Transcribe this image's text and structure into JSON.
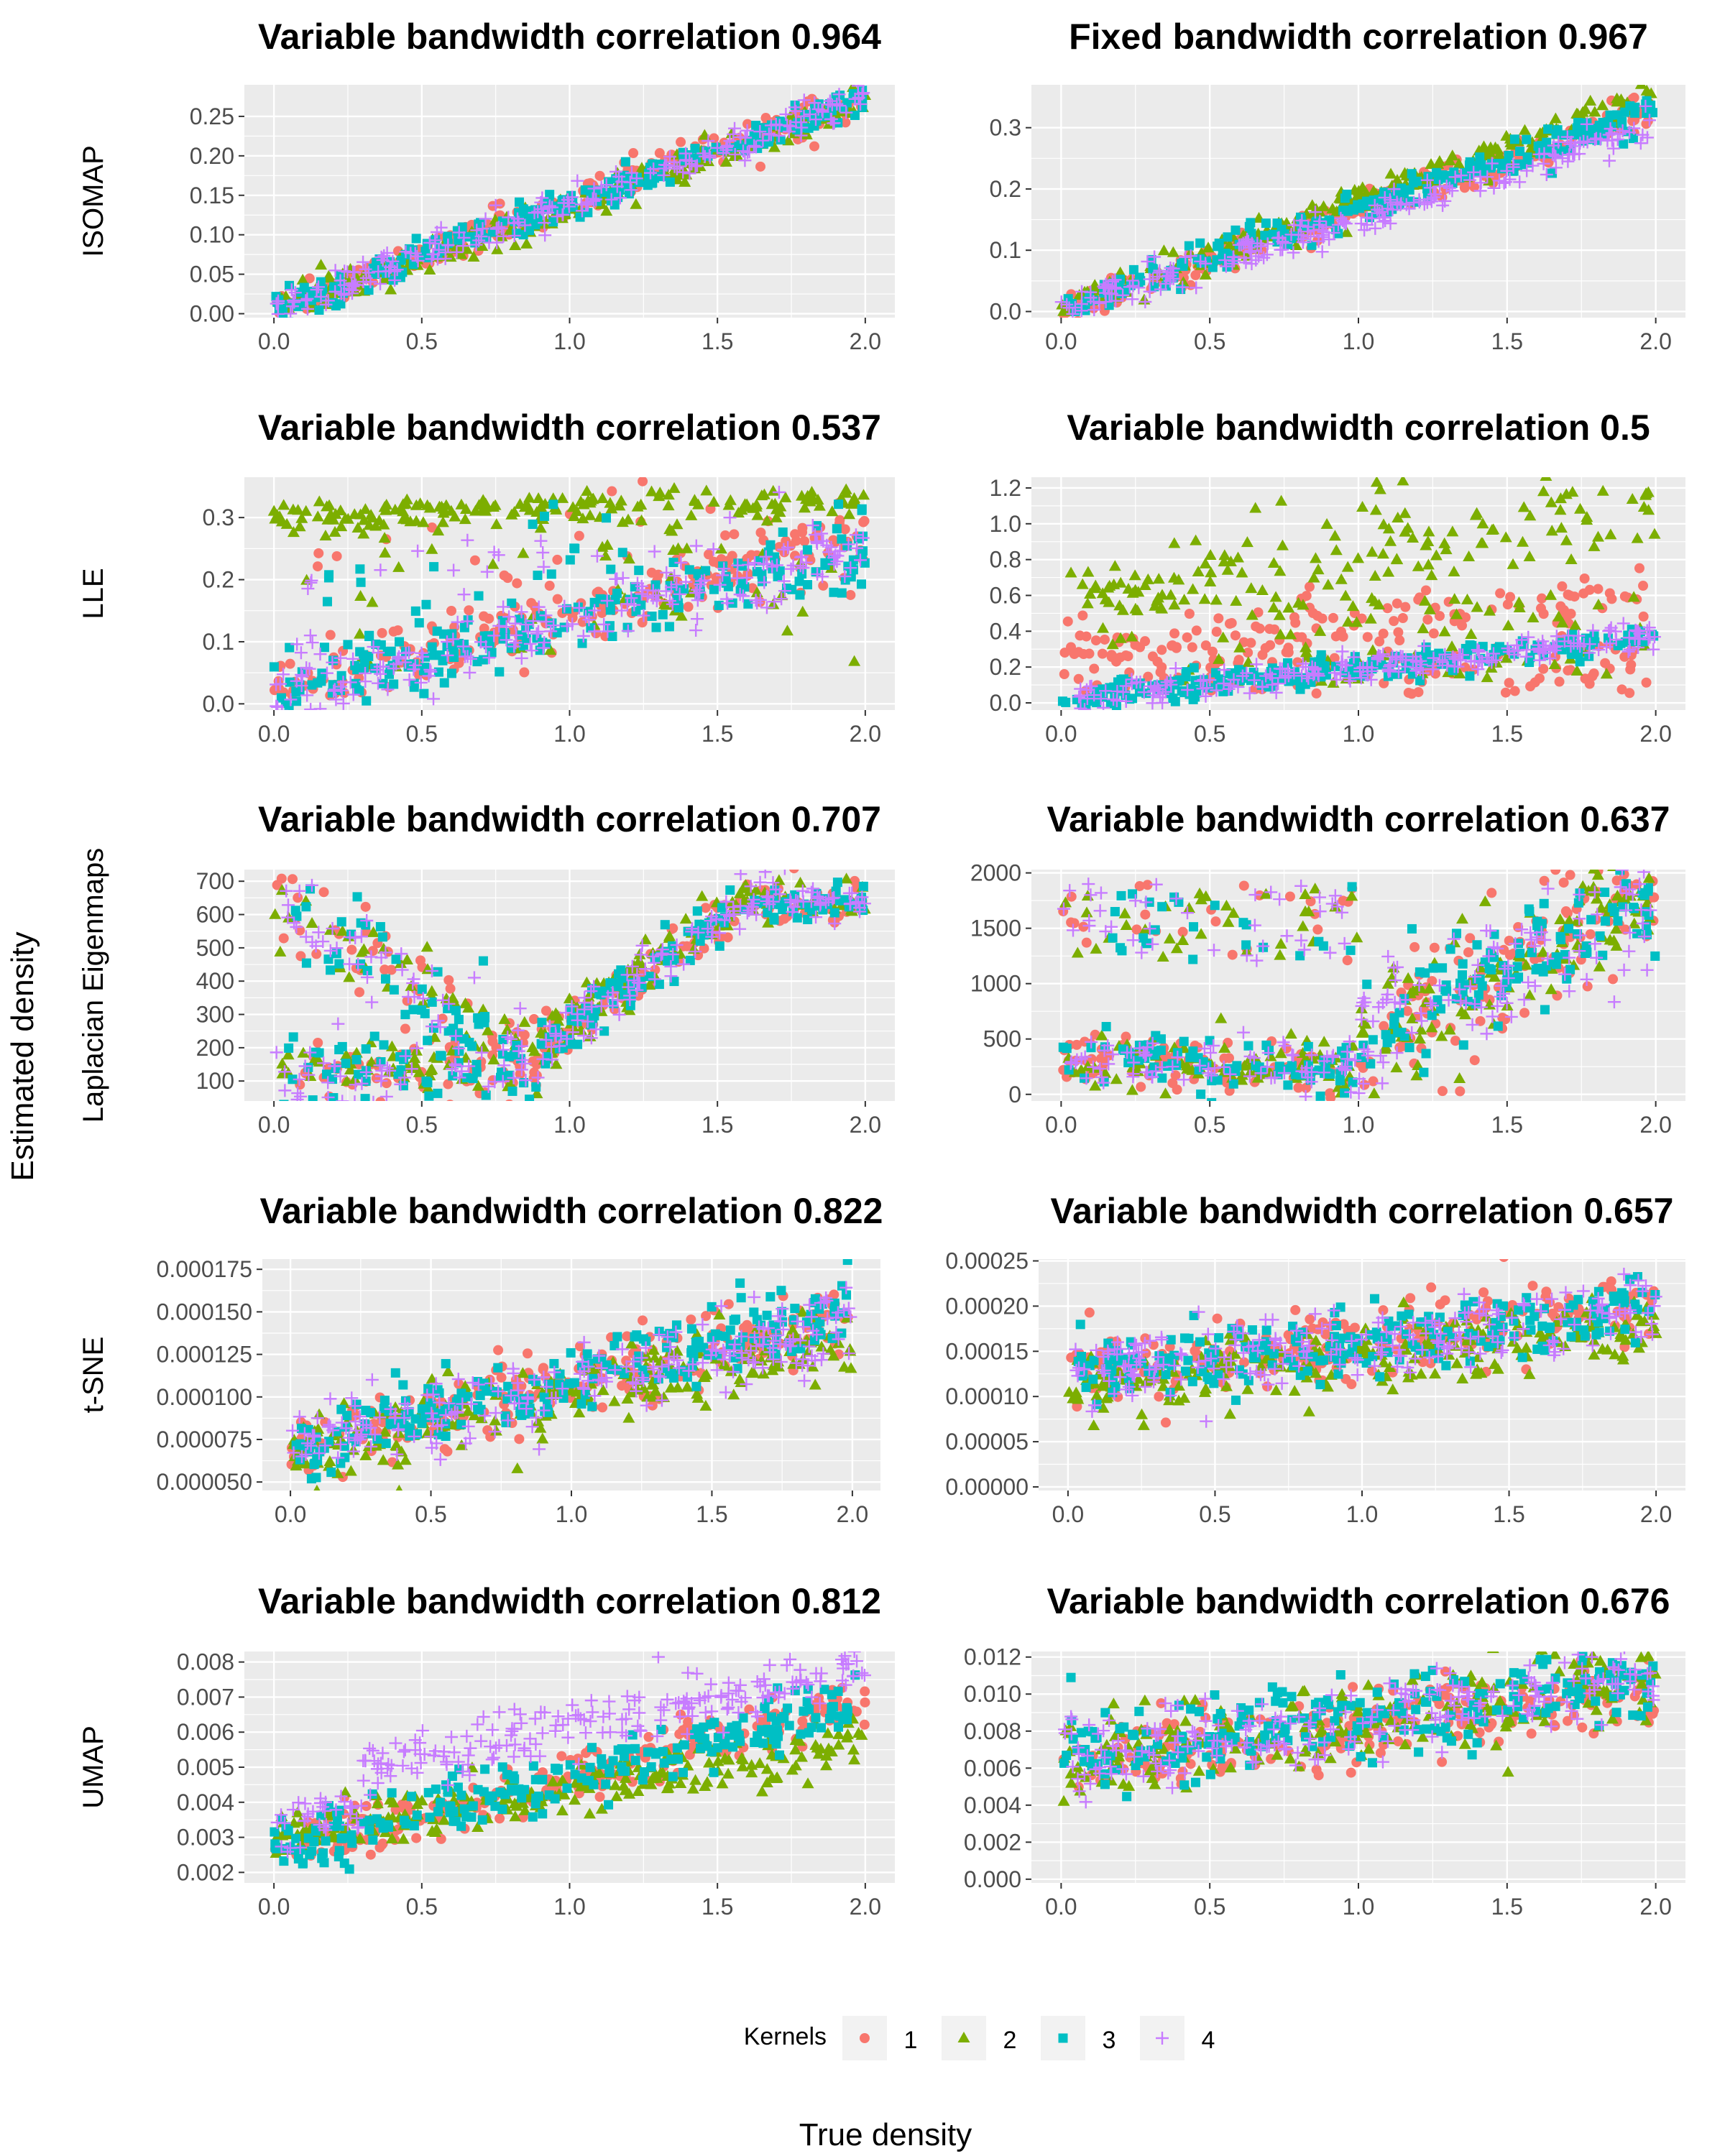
{
  "figure": {
    "xlabel": "True density",
    "ylabel": "Estimated density",
    "legend": {
      "title": "Kernels",
      "placement": "bottom",
      "entries": [
        {
          "label": "1",
          "color": "#F8766D",
          "shape": "circle"
        },
        {
          "label": "2",
          "color": "#7CAE00",
          "shape": "triangle"
        },
        {
          "label": "3",
          "color": "#00BFC4",
          "shape": "square"
        },
        {
          "label": "4",
          "color": "#C77CFF",
          "shape": "plus"
        }
      ]
    },
    "row_labels": [
      "ISOMAP",
      "LLE",
      "Laplacian Eigenmaps",
      "t-SNE",
      "UMAP"
    ],
    "panel_background": "#EBEBEB",
    "grid": true
  },
  "chart_data": [
    {
      "type": "scatter",
      "row": "ISOMAP",
      "title": "Variable bandwidth correlation 0.964",
      "xlim": [
        -0.1,
        2.1
      ],
      "ylim": [
        -0.005,
        0.29
      ],
      "xticks": [
        {
          "v": 0,
          "label": "0.0"
        },
        {
          "v": 0.5,
          "label": "0.5"
        },
        {
          "v": 1,
          "label": "1.0"
        },
        {
          "v": 1.5,
          "label": "1.5"
        },
        {
          "v": 2,
          "label": "2.0"
        }
      ],
      "yticks": [
        {
          "v": 0,
          "label": "0.00"
        },
        {
          "v": 0.05,
          "label": "0.05"
        },
        {
          "v": 0.1,
          "label": "0.10"
        },
        {
          "v": 0.15,
          "label": "0.15"
        },
        {
          "v": 0.2,
          "label": "0.20"
        },
        {
          "v": 0.25,
          "label": "0.25"
        }
      ],
      "series": [
        {
          "name": "1",
          "color": "#F8766D",
          "shape": "circle"
        },
        {
          "name": "2",
          "color": "#7CAE00",
          "shape": "triangle"
        },
        {
          "name": "3",
          "color": "#00BFC4",
          "shape": "square"
        },
        {
          "name": "4",
          "color": "#C77CFF",
          "shape": "plus"
        }
      ]
    },
    {
      "type": "scatter",
      "row": "ISOMAP",
      "title": "Fixed bandwidth correlation 0.967",
      "xlim": [
        -0.1,
        2.1
      ],
      "ylim": [
        -0.01,
        0.37
      ],
      "xticks": [
        {
          "v": 0,
          "label": "0.0"
        },
        {
          "v": 0.5,
          "label": "0.5"
        },
        {
          "v": 1,
          "label": "1.0"
        },
        {
          "v": 1.5,
          "label": "1.5"
        },
        {
          "v": 2,
          "label": "2.0"
        }
      ],
      "yticks": [
        {
          "v": 0,
          "label": "0.0"
        },
        {
          "v": 0.1,
          "label": "0.1"
        },
        {
          "v": 0.2,
          "label": "0.2"
        },
        {
          "v": 0.3,
          "label": "0.3"
        }
      ],
      "series": [
        {
          "name": "1",
          "color": "#F8766D",
          "shape": "circle"
        },
        {
          "name": "2",
          "color": "#7CAE00",
          "shape": "triangle"
        },
        {
          "name": "3",
          "color": "#00BFC4",
          "shape": "square"
        },
        {
          "name": "4",
          "color": "#C77CFF",
          "shape": "plus"
        }
      ]
    },
    {
      "type": "scatter",
      "row": "LLE",
      "title": "Variable bandwidth correlation 0.537",
      "xlim": [
        -0.1,
        2.1
      ],
      "ylim": [
        -0.01,
        0.365
      ],
      "xticks": [
        {
          "v": 0,
          "label": "0.0"
        },
        {
          "v": 0.5,
          "label": "0.5"
        },
        {
          "v": 1,
          "label": "1.0"
        },
        {
          "v": 1.5,
          "label": "1.5"
        },
        {
          "v": 2,
          "label": "2.0"
        }
      ],
      "yticks": [
        {
          "v": 0,
          "label": "0.0"
        },
        {
          "v": 0.1,
          "label": "0.1"
        },
        {
          "v": 0.2,
          "label": "0.2"
        },
        {
          "v": 0.3,
          "label": "0.3"
        }
      ],
      "series": [
        {
          "name": "1",
          "color": "#F8766D",
          "shape": "circle"
        },
        {
          "name": "2",
          "color": "#7CAE00",
          "shape": "triangle"
        },
        {
          "name": "3",
          "color": "#00BFC4",
          "shape": "square"
        },
        {
          "name": "4",
          "color": "#C77CFF",
          "shape": "plus"
        }
      ]
    },
    {
      "type": "scatter",
      "row": "LLE",
      "title": "Variable bandwidth correlation 0.5",
      "xlim": [
        -0.1,
        2.1
      ],
      "ylim": [
        -0.04,
        1.26
      ],
      "xticks": [
        {
          "v": 0,
          "label": "0.0"
        },
        {
          "v": 0.5,
          "label": "0.5"
        },
        {
          "v": 1,
          "label": "1.0"
        },
        {
          "v": 1.5,
          "label": "1.5"
        },
        {
          "v": 2,
          "label": "2.0"
        }
      ],
      "yticks": [
        {
          "v": 0,
          "label": "0.0"
        },
        {
          "v": 0.2,
          "label": "0.2"
        },
        {
          "v": 0.4,
          "label": "0.4"
        },
        {
          "v": 0.6,
          "label": "0.6"
        },
        {
          "v": 0.8,
          "label": "0.8"
        },
        {
          "v": 1.0,
          "label": "1.0"
        },
        {
          "v": 1.2,
          "label": "1.2"
        }
      ],
      "series": [
        {
          "name": "1",
          "color": "#F8766D",
          "shape": "circle"
        },
        {
          "name": "2",
          "color": "#7CAE00",
          "shape": "triangle"
        },
        {
          "name": "3",
          "color": "#00BFC4",
          "shape": "square"
        },
        {
          "name": "4",
          "color": "#C77CFF",
          "shape": "plus"
        }
      ]
    },
    {
      "type": "scatter",
      "row": "Laplacian Eigenmaps",
      "title": "Variable bandwidth correlation 0.707",
      "xlim": [
        -0.1,
        2.1
      ],
      "ylim": [
        40,
        735
      ],
      "xticks": [
        {
          "v": 0,
          "label": "0.0"
        },
        {
          "v": 0.5,
          "label": "0.5"
        },
        {
          "v": 1,
          "label": "1.0"
        },
        {
          "v": 1.5,
          "label": "1.5"
        },
        {
          "v": 2,
          "label": "2.0"
        }
      ],
      "yticks": [
        {
          "v": 100,
          "label": "100"
        },
        {
          "v": 200,
          "label": "200"
        },
        {
          "v": 300,
          "label": "300"
        },
        {
          "v": 400,
          "label": "400"
        },
        {
          "v": 500,
          "label": "500"
        },
        {
          "v": 600,
          "label": "600"
        },
        {
          "v": 700,
          "label": "700"
        }
      ],
      "series": [
        {
          "name": "1",
          "color": "#F8766D",
          "shape": "circle"
        },
        {
          "name": "2",
          "color": "#7CAE00",
          "shape": "triangle"
        },
        {
          "name": "3",
          "color": "#00BFC4",
          "shape": "square"
        },
        {
          "name": "4",
          "color": "#C77CFF",
          "shape": "plus"
        }
      ]
    },
    {
      "type": "scatter",
      "row": "Laplacian Eigenmaps",
      "title": "Variable bandwidth correlation 0.637",
      "xlim": [
        -0.1,
        2.1
      ],
      "ylim": [
        -60,
        2030
      ],
      "xticks": [
        {
          "v": 0,
          "label": "0.0"
        },
        {
          "v": 0.5,
          "label": "0.5"
        },
        {
          "v": 1,
          "label": "1.0"
        },
        {
          "v": 1.5,
          "label": "1.5"
        },
        {
          "v": 2,
          "label": "2.0"
        }
      ],
      "yticks": [
        {
          "v": 0,
          "label": "0"
        },
        {
          "v": 500,
          "label": "500"
        },
        {
          "v": 1000,
          "label": "1000"
        },
        {
          "v": 1500,
          "label": "1500"
        },
        {
          "v": 2000,
          "label": "2000"
        }
      ],
      "series": [
        {
          "name": "1",
          "color": "#F8766D",
          "shape": "circle"
        },
        {
          "name": "2",
          "color": "#7CAE00",
          "shape": "triangle"
        },
        {
          "name": "3",
          "color": "#00BFC4",
          "shape": "square"
        },
        {
          "name": "4",
          "color": "#C77CFF",
          "shape": "plus"
        }
      ]
    },
    {
      "type": "scatter",
      "row": "t-SNE",
      "title": "Variable bandwidth correlation 0.822",
      "xlim": [
        -0.1,
        2.1
      ],
      "ylim": [
        4.5e-05,
        0.000181
      ],
      "xticks": [
        {
          "v": 0,
          "label": "0.0"
        },
        {
          "v": 0.5,
          "label": "0.5"
        },
        {
          "v": 1,
          "label": "1.0"
        },
        {
          "v": 1.5,
          "label": "1.5"
        },
        {
          "v": 2,
          "label": "2.0"
        }
      ],
      "yticks": [
        {
          "v": 5e-05,
          "label": "0.000050"
        },
        {
          "v": 7.5e-05,
          "label": "0.000075"
        },
        {
          "v": 0.0001,
          "label": "0.000100"
        },
        {
          "v": 0.000125,
          "label": "0.000125"
        },
        {
          "v": 0.00015,
          "label": "0.000150"
        },
        {
          "v": 0.000175,
          "label": "0.000175"
        }
      ],
      "series": [
        {
          "name": "1",
          "color": "#F8766D",
          "shape": "circle"
        },
        {
          "name": "2",
          "color": "#7CAE00",
          "shape": "triangle"
        },
        {
          "name": "3",
          "color": "#00BFC4",
          "shape": "square"
        },
        {
          "name": "4",
          "color": "#C77CFF",
          "shape": "plus"
        }
      ]
    },
    {
      "type": "scatter",
      "row": "t-SNE",
      "title": "Variable bandwidth correlation 0.657",
      "xlim": [
        -0.1,
        2.1
      ],
      "ylim": [
        -4e-06,
        0.000252
      ],
      "xticks": [
        {
          "v": 0,
          "label": "0.0"
        },
        {
          "v": 0.5,
          "label": "0.5"
        },
        {
          "v": 1,
          "label": "1.0"
        },
        {
          "v": 1.5,
          "label": "1.5"
        },
        {
          "v": 2,
          "label": "2.0"
        }
      ],
      "yticks": [
        {
          "v": 0,
          "label": "0.00000"
        },
        {
          "v": 5e-05,
          "label": "0.00005"
        },
        {
          "v": 0.0001,
          "label": "0.00010"
        },
        {
          "v": 0.00015,
          "label": "0.00015"
        },
        {
          "v": 0.0002,
          "label": "0.00020"
        },
        {
          "v": 0.00025,
          "label": "0.00025"
        }
      ],
      "series": [
        {
          "name": "1",
          "color": "#F8766D",
          "shape": "circle"
        },
        {
          "name": "2",
          "color": "#7CAE00",
          "shape": "triangle"
        },
        {
          "name": "3",
          "color": "#00BFC4",
          "shape": "square"
        },
        {
          "name": "4",
          "color": "#C77CFF",
          "shape": "plus"
        }
      ]
    },
    {
      "type": "scatter",
      "row": "UMAP",
      "title": "Variable bandwidth correlation 0.812",
      "xlim": [
        -0.1,
        2.1
      ],
      "ylim": [
        0.0017,
        0.0083
      ],
      "xticks": [
        {
          "v": 0,
          "label": "0.0"
        },
        {
          "v": 0.5,
          "label": "0.5"
        },
        {
          "v": 1,
          "label": "1.0"
        },
        {
          "v": 1.5,
          "label": "1.5"
        },
        {
          "v": 2,
          "label": "2.0"
        }
      ],
      "yticks": [
        {
          "v": 0.002,
          "label": "0.002"
        },
        {
          "v": 0.003,
          "label": "0.003"
        },
        {
          "v": 0.004,
          "label": "0.004"
        },
        {
          "v": 0.005,
          "label": "0.005"
        },
        {
          "v": 0.006,
          "label": "0.006"
        },
        {
          "v": 0.007,
          "label": "0.007"
        },
        {
          "v": 0.008,
          "label": "0.008"
        }
      ],
      "series": [
        {
          "name": "1",
          "color": "#F8766D",
          "shape": "circle"
        },
        {
          "name": "2",
          "color": "#7CAE00",
          "shape": "triangle"
        },
        {
          "name": "3",
          "color": "#00BFC4",
          "shape": "square"
        },
        {
          "name": "4",
          "color": "#C77CFF",
          "shape": "plus"
        }
      ]
    },
    {
      "type": "scatter",
      "row": "UMAP",
      "title": "Variable bandwidth correlation 0.676",
      "xlim": [
        -0.1,
        2.1
      ],
      "ylim": [
        -0.0002,
        0.0123
      ],
      "xticks": [
        {
          "v": 0,
          "label": "0.0"
        },
        {
          "v": 0.5,
          "label": "0.5"
        },
        {
          "v": 1,
          "label": "1.0"
        },
        {
          "v": 1.5,
          "label": "1.5"
        },
        {
          "v": 2,
          "label": "2.0"
        }
      ],
      "yticks": [
        {
          "v": 0,
          "label": "0.000"
        },
        {
          "v": 0.002,
          "label": "0.002"
        },
        {
          "v": 0.004,
          "label": "0.004"
        },
        {
          "v": 0.006,
          "label": "0.006"
        },
        {
          "v": 0.008,
          "label": "0.008"
        },
        {
          "v": 0.01,
          "label": "0.010"
        },
        {
          "v": 0.012,
          "label": "0.012"
        }
      ],
      "series": [
        {
          "name": "1",
          "color": "#F8766D",
          "shape": "circle"
        },
        {
          "name": "2",
          "color": "#7CAE00",
          "shape": "triangle"
        },
        {
          "name": "3",
          "color": "#00BFC4",
          "shape": "square"
        },
        {
          "name": "4",
          "color": "#C77CFF",
          "shape": "plus"
        }
      ]
    }
  ]
}
